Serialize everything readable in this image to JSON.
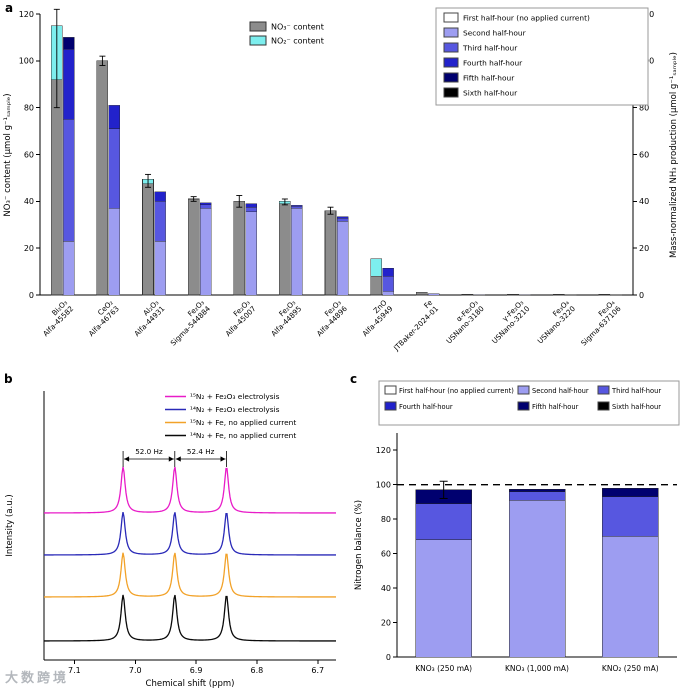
{
  "figure": {
    "panel_a_label": "a",
    "panel_b_label": "b",
    "panel_c_label": "c",
    "watermark": "大数跨境"
  },
  "colors": {
    "no3_content": "#8c8c8c",
    "no2_content": "#7deeee",
    "h1": "#ffffff",
    "h2": "#9d9df1",
    "h3": "#5757e0",
    "h4": "#2222cb",
    "h5": "#00006f",
    "h6": "#000000",
    "trace_15n2_fe2o3": "#e81cc8",
    "trace_14n2_fe2o3": "#2a2ab8",
    "trace_15n2_fe": "#f2a229",
    "trace_14n2_fe": "#0a0a0a",
    "axis": "#000000",
    "error_bar": "#000000"
  },
  "chart_data": [
    {
      "type": "bar",
      "panel": "a",
      "ylabel_left": "NO₃⁻ content (µmol g⁻¹ₛₐₘₚₗₑ)",
      "ylabel_right": "Mass-normalized NH₃ production (µmol g⁻¹ₛₐₘₚₗₑ)",
      "ylim": [
        0,
        120
      ],
      "yticks": [
        0,
        20,
        40,
        60,
        80,
        100,
        120
      ],
      "grid": false,
      "content_legend": [
        {
          "color_key": "no3_content",
          "label": "NO₃⁻ content"
        },
        {
          "color_key": "no2_content",
          "label": "NO₂⁻ content"
        }
      ],
      "halfhour_legend": [
        {
          "color_key": "h1",
          "label": "First half-hour (no applied current)"
        },
        {
          "color_key": "h2",
          "label": "Second half-hour"
        },
        {
          "color_key": "h3",
          "label": "Third half-hour"
        },
        {
          "color_key": "h4",
          "label": "Fourth half-hour"
        },
        {
          "color_key": "h5",
          "label": "Fifth half-hour"
        },
        {
          "color_key": "h6",
          "label": "Sixth half-hour"
        }
      ],
      "categories": [
        {
          "formula": "Bi₂O₃",
          "supplier": "Alfa-45582",
          "no3": 92,
          "no2": 23,
          "err_range": [
            80,
            122
          ],
          "nh3_segments": [
            [
              "h2",
              23
            ],
            [
              "h3",
              52
            ],
            [
              "h4",
              30
            ],
            [
              "h5",
              5
            ]
          ]
        },
        {
          "formula": "CeO₂",
          "supplier": "Alfa-46763",
          "no3": 100,
          "no2": 0,
          "err_range": [
            98,
            102
          ],
          "nh3_segments": [
            [
              "h2",
              37
            ],
            [
              "h3",
              34
            ],
            [
              "h4",
              10
            ]
          ]
        },
        {
          "formula": "Al₂O₃",
          "supplier": "Alfa-44931",
          "no3": 47.5,
          "no2": 2,
          "err_range": [
            46,
            51.5
          ],
          "nh3_segments": [
            [
              "h2",
              23
            ],
            [
              "h3",
              17
            ],
            [
              "h4",
              4
            ]
          ]
        },
        {
          "formula": "Fe₂O₃",
          "supplier": "Sigma-544884",
          "no3": 41,
          "no2": 0,
          "err_range": [
            40,
            42
          ],
          "nh3_segments": [
            [
              "h2",
              37
            ],
            [
              "h3",
              1.5
            ],
            [
              "h4",
              0.8
            ]
          ]
        },
        {
          "formula": "Fe₂O₃",
          "supplier": "Alfa-45007",
          "no3": 40,
          "no2": 0,
          "err_range": [
            37.5,
            42.5
          ],
          "nh3_segments": [
            [
              "h2",
              35.5
            ],
            [
              "h3",
              2
            ],
            [
              "h4",
              1.5
            ]
          ]
        },
        {
          "formula": "Fe₂O₃",
          "supplier": "Alfa-44895",
          "no3": 39,
          "no2": 1,
          "err_range": [
            38.5,
            41
          ],
          "nh3_segments": [
            [
              "h2",
              37
            ],
            [
              "h3",
              0.8
            ],
            [
              "h4",
              0.5
            ]
          ]
        },
        {
          "formula": "Fe₂O₃",
          "supplier": "Alfa-44896",
          "no3": 36,
          "no2": 0,
          "err_range": [
            34.5,
            37.5
          ],
          "nh3_segments": [
            [
              "h2",
              31.5
            ],
            [
              "h3",
              1.2
            ],
            [
              "h4",
              0.8
            ]
          ]
        },
        {
          "formula": "ZnO",
          "supplier": "Alfa-45949",
          "no3": 8,
          "no2": 7.5,
          "err_range": null,
          "nh3_segments": [
            [
              "h2",
              1.5
            ],
            [
              "h3",
              6.5
            ],
            [
              "h4",
              3.5
            ]
          ]
        },
        {
          "formula": "Fe",
          "supplier": "JTBaker-2024-01",
          "no3": 1.2,
          "no2": 0,
          "err_range": null,
          "nh3_segments": [
            [
              "h2",
              0.6
            ]
          ]
        },
        {
          "formula": "α-Fe₂O₃",
          "supplier": "USNano-3180",
          "no3": 0.3,
          "no2": 0,
          "err_range": null,
          "nh3_segments": [
            [
              "h2",
              0.2
            ]
          ]
        },
        {
          "formula": "γ-Fe₂O₃",
          "supplier": "USNano-3210",
          "no3": 0.25,
          "no2": 0,
          "err_range": null,
          "nh3_segments": [
            [
              "h2",
              0.15
            ]
          ]
        },
        {
          "formula": "Fe₃O₄",
          "supplier": "USNano-3220",
          "no3": 0.2,
          "no2": 0,
          "err_range": null,
          "nh3_segments": [
            [
              "h2",
              0.1
            ]
          ]
        },
        {
          "formula": "Fe₃O₄",
          "supplier": "Sigma-637106",
          "no3": 0.2,
          "no2": 0,
          "err_range": null,
          "nh3_segments": [
            [
              "h2",
              0.1
            ]
          ]
        }
      ]
    },
    {
      "type": "line",
      "panel": "b",
      "xlabel": "Chemical shift (ppm)",
      "ylabel": "Intensity (a.u.)",
      "xticks": [
        7.1,
        7.0,
        6.9,
        6.8,
        6.7
      ],
      "x_range": [
        7.15,
        6.67
      ],
      "peak_positions_ppm": [
        7.02,
        6.935,
        6.85
      ],
      "peak_width_ppm": 0.0042,
      "couplings": [
        {
          "label": "52.0 Hz",
          "from_peak": 0,
          "to_peak": 1
        },
        {
          "label": "52.4 Hz",
          "from_peak": 1,
          "to_peak": 2
        }
      ],
      "series": [
        {
          "name": "¹⁵N₂ + Fe₂O₃ electrolysis",
          "color_key": "trace_15n2_fe2o3",
          "height": 1.0
        },
        {
          "name": "¹⁴N₂ + Fe₂O₃ electrolysis",
          "color_key": "trace_14n2_fe2o3",
          "height": 0.93
        },
        {
          "name": "¹⁵N₂ + Fe, no applied current",
          "color_key": "trace_15n2_fe",
          "height": 0.96
        },
        {
          "name": "¹⁴N₂ + Fe, no applied current",
          "color_key": "trace_14n2_fe",
          "height": 1.0
        }
      ]
    },
    {
      "type": "bar",
      "panel": "c",
      "ylabel": "Nitrogen balance (%)",
      "ylim": [
        0,
        130
      ],
      "yticks": [
        0,
        20,
        40,
        60,
        80,
        100,
        120
      ],
      "reference_line": 100,
      "legend": [
        {
          "color_key": "h1",
          "label": "First half-hour (no applied current)"
        },
        {
          "color_key": "h2",
          "label": "Second half-hour"
        },
        {
          "color_key": "h3",
          "label": "Third half-hour"
        },
        {
          "color_key": "h4",
          "label": "Fourth half-hour"
        },
        {
          "color_key": "h5",
          "label": "Fifth half-hour"
        },
        {
          "color_key": "h6",
          "label": "Sixth half-hour"
        }
      ],
      "categories": [
        {
          "label": "KNO₃ (250 mA)",
          "segments": [
            [
              "h2",
              68
            ],
            [
              "h3",
              21
            ],
            [
              "h5",
              8
            ]
          ],
          "err_range": [
            92,
            102
          ]
        },
        {
          "label": "KNO₃ (1,000 mA)",
          "segments": [
            [
              "h2",
              91
            ],
            [
              "h3",
              5
            ],
            [
              "h5",
              1.5
            ]
          ],
          "err_range": null
        },
        {
          "label": "KNO₂ (250 mA)",
          "segments": [
            [
              "h2",
              70
            ],
            [
              "h3",
              23
            ],
            [
              "h5",
              5
            ]
          ],
          "err_range": null
        }
      ]
    }
  ]
}
